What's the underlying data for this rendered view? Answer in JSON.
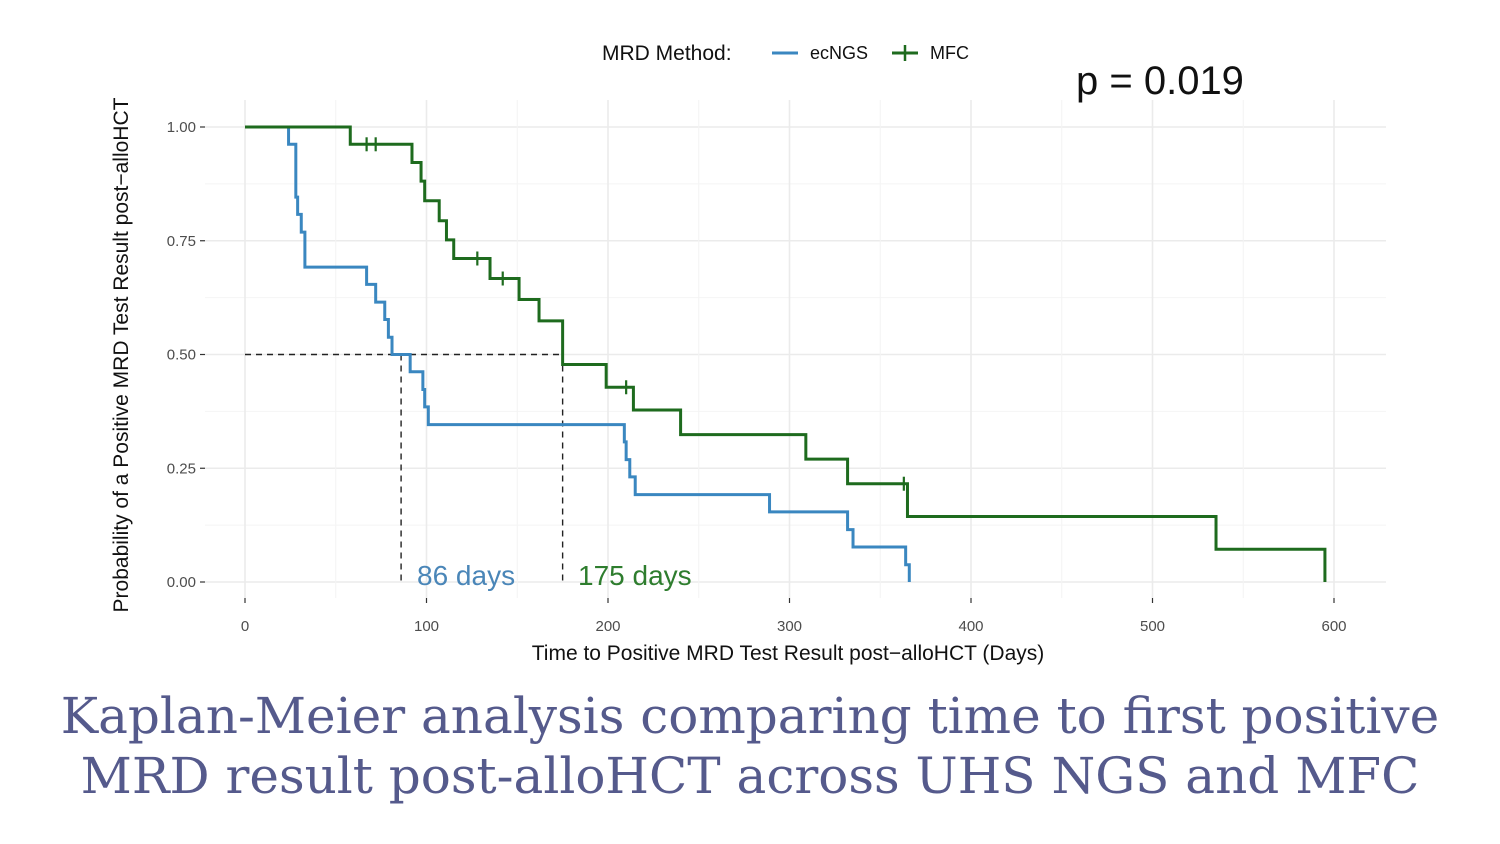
{
  "chart_data": {
    "type": "line",
    "subtype": "kaplan-meier",
    "xlabel": "Time to Positive MRD Test Result post−alloHCT (Days)",
    "ylabel": "Probability of a Positive MRD Test Result post−alloHCT",
    "xlim": [
      0,
      630
    ],
    "ylim": [
      0,
      1.0
    ],
    "x_ticks": [
      0,
      100,
      200,
      300,
      400,
      500,
      600
    ],
    "y_ticks": [
      0.0,
      0.25,
      0.5,
      0.75,
      1.0
    ],
    "x_tick_labels": [
      "0",
      "100",
      "200",
      "300",
      "400",
      "500",
      "600"
    ],
    "y_tick_labels": [
      "0.00",
      "0.25",
      "0.50",
      "0.75",
      "1.00"
    ],
    "grid": true,
    "legend": {
      "title": "MRD Method:",
      "position": "top",
      "entries": [
        "ecNGS",
        "MFC"
      ]
    },
    "annotation": "p = 0.019",
    "median": {
      "y": 0.5,
      "lines": [
        {
          "x": 86,
          "label": "86 days",
          "color": "#4a86b8"
        },
        {
          "x": 175,
          "label": "175 days",
          "color": "#2e7d2e"
        }
      ]
    },
    "series": [
      {
        "name": "ecNGS",
        "color": "#3a87c0",
        "steps": [
          [
            0,
            1.0
          ],
          [
            24,
            0.962
          ],
          [
            28,
            0.846
          ],
          [
            29,
            0.808
          ],
          [
            31,
            0.769
          ],
          [
            33,
            0.692
          ],
          [
            67,
            0.654
          ],
          [
            72,
            0.615
          ],
          [
            77,
            0.577
          ],
          [
            79,
            0.538
          ],
          [
            81,
            0.5
          ],
          [
            91,
            0.462
          ],
          [
            98,
            0.423
          ],
          [
            99,
            0.385
          ],
          [
            101,
            0.346
          ],
          [
            209,
            0.308
          ],
          [
            210,
            0.269
          ],
          [
            212,
            0.231
          ],
          [
            215,
            0.192
          ],
          [
            289,
            0.154
          ],
          [
            332,
            0.115
          ],
          [
            335,
            0.077
          ],
          [
            364,
            0.038
          ],
          [
            366,
            0.0
          ]
        ],
        "end_x": 366,
        "censors": []
      },
      {
        "name": "MFC",
        "color": "#1e6b1e",
        "steps": [
          [
            0,
            1.0
          ],
          [
            58,
            0.962
          ],
          [
            92,
            0.922
          ],
          [
            97,
            0.881
          ],
          [
            99,
            0.838
          ],
          [
            107,
            0.794
          ],
          [
            111,
            0.752
          ],
          [
            115,
            0.711
          ],
          [
            135,
            0.667
          ],
          [
            151,
            0.621
          ],
          [
            162,
            0.574
          ],
          [
            175,
            0.478
          ],
          [
            199,
            0.428
          ],
          [
            214,
            0.378
          ],
          [
            240,
            0.324
          ],
          [
            309,
            0.27
          ],
          [
            332,
            0.216
          ],
          [
            365,
            0.144
          ],
          [
            535,
            0.072
          ],
          [
            595,
            0.0
          ]
        ],
        "end_x": 595,
        "censors": [
          [
            67,
            0.962
          ],
          [
            72,
            0.962
          ],
          [
            128,
            0.711
          ],
          [
            142,
            0.667
          ],
          [
            210,
            0.428
          ],
          [
            363,
            0.216
          ]
        ]
      }
    ]
  },
  "caption": {
    "line1": "Kaplan-Meier analysis comparing time to first positive",
    "line2": "MRD result post-alloHCT across UHS NGS and MFC"
  }
}
